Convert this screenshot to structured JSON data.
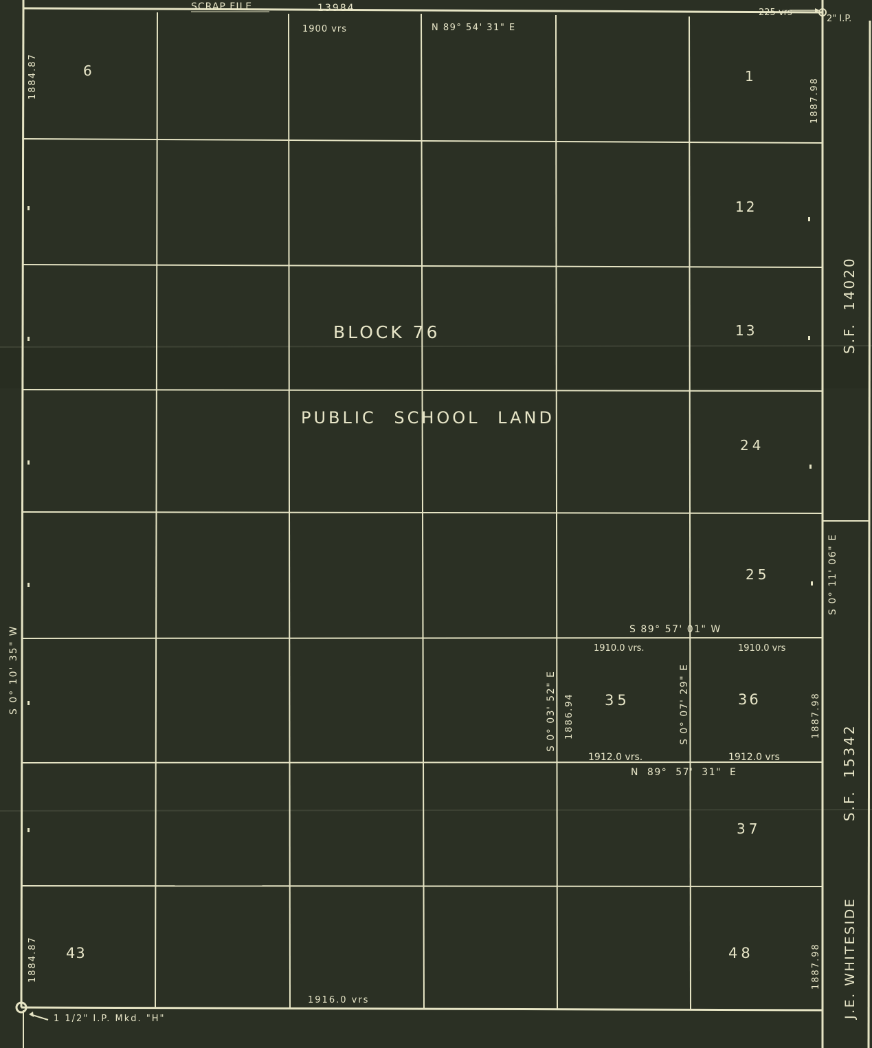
{
  "header": {
    "scrap_file_label": "SCRAP FILE",
    "scrap_file_number": "13984",
    "corner_distance": "225 vrs",
    "corner_pipe": "2\" I.P."
  },
  "block": {
    "title": "BLOCK 76",
    "subtitle": "PUBLIC SCHOOL LAND"
  },
  "sections": [
    "6",
    "1",
    "12",
    "13",
    "24",
    "25",
    "35",
    "36",
    "37",
    "43",
    "48"
  ],
  "bearings": {
    "north_line": "N 89° 54' 31\" E",
    "north_distance": "1900 vrs",
    "south_distance": "1916.0 vrs",
    "west_line": "S 0° 10' 35\" W",
    "west_top": "1884.87",
    "west_bottom": "1884.87",
    "east_top": "1887.98",
    "east_mid": "1887.98",
    "east_bottom": "1887.98",
    "east_line": "S 0° 11' 06\" E",
    "tract_north": "S 89° 57' 01\" W",
    "tract_north_dist_a": "1910.0 vrs.",
    "tract_north_dist_b": "1910.0 vrs",
    "tract_south": "N 89° 57' 31\" E",
    "tract_south_dist_a": "1912.0 vrs.",
    "tract_south_dist_b": "1912.0 vrs",
    "tract_west": "S 0° 03' 52\" E",
    "tract_west_dist": "1886.94",
    "tract_mid": "S 0° 07' 29\" E"
  },
  "adjoining": {
    "sf_top": "S.F. 14020",
    "sf_bottom": "S.F. 15342",
    "owner": "J.E. WHITESIDE"
  },
  "monument": {
    "label": "1 1/2\" I.P. Mkd. \"H\""
  },
  "colors": {
    "background": "#2b3024",
    "ink": "#e6e4c4"
  }
}
